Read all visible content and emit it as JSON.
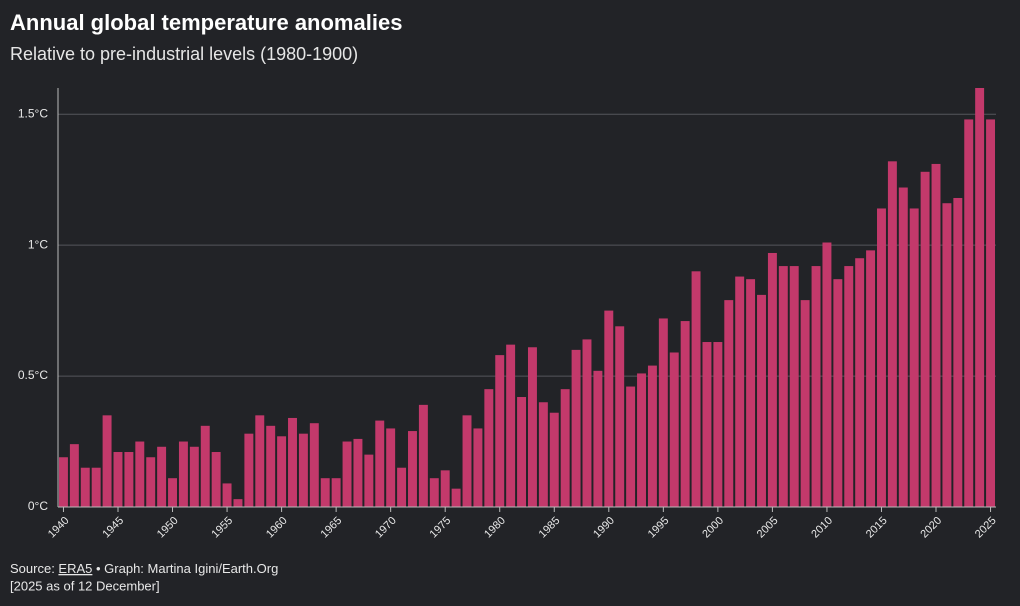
{
  "chart_data": {
    "type": "bar",
    "title": "Annual global temperature anomalies",
    "subtitle": "Relative to pre-industrial levels (1980-1900)",
    "x": [
      1940,
      1941,
      1942,
      1943,
      1944,
      1945,
      1946,
      1947,
      1948,
      1949,
      1950,
      1951,
      1952,
      1953,
      1954,
      1955,
      1956,
      1957,
      1958,
      1959,
      1960,
      1961,
      1962,
      1963,
      1964,
      1965,
      1966,
      1967,
      1968,
      1969,
      1970,
      1971,
      1972,
      1973,
      1974,
      1975,
      1976,
      1977,
      1978,
      1979,
      1980,
      1981,
      1982,
      1983,
      1984,
      1985,
      1986,
      1987,
      1988,
      1989,
      1990,
      1991,
      1992,
      1993,
      1994,
      1995,
      1996,
      1997,
      1998,
      1999,
      2000,
      2001,
      2002,
      2003,
      2004,
      2005,
      2006,
      2007,
      2008,
      2009,
      2010,
      2011,
      2012,
      2013,
      2014,
      2015,
      2016,
      2017,
      2018,
      2019,
      2020,
      2021,
      2022,
      2023,
      2024,
      2025
    ],
    "values": [
      0.19,
      0.24,
      0.15,
      0.15,
      0.35,
      0.21,
      0.21,
      0.25,
      0.19,
      0.23,
      0.11,
      0.25,
      0.23,
      0.31,
      0.21,
      0.09,
      0.03,
      0.28,
      0.35,
      0.31,
      0.27,
      0.34,
      0.28,
      0.32,
      0.11,
      0.11,
      0.25,
      0.26,
      0.2,
      0.33,
      0.3,
      0.15,
      0.29,
      0.39,
      0.11,
      0.14,
      0.07,
      0.35,
      0.3,
      0.45,
      0.58,
      0.62,
      0.42,
      0.61,
      0.4,
      0.36,
      0.45,
      0.6,
      0.64,
      0.52,
      0.75,
      0.69,
      0.46,
      0.51,
      0.54,
      0.72,
      0.59,
      0.71,
      0.9,
      0.63,
      0.63,
      0.79,
      0.88,
      0.87,
      0.81,
      0.97,
      0.92,
      0.92,
      0.79,
      0.92,
      1.01,
      0.87,
      0.92,
      0.95,
      0.98,
      1.14,
      1.32,
      1.22,
      1.14,
      1.28,
      1.31,
      1.16,
      1.18,
      1.48,
      1.6,
      1.48
    ],
    "color": "#c3396b",
    "xlim": [
      1939.5,
      2025.5
    ],
    "xticks": [
      1940,
      1945,
      1950,
      1955,
      1960,
      1965,
      1970,
      1975,
      1980,
      1985,
      1990,
      1995,
      2000,
      2005,
      2010,
      2015,
      2020,
      2025
    ],
    "ylim": [
      0,
      1.6
    ],
    "yticks": [
      {
        "value": 0,
        "label": "0°C"
      },
      {
        "value": 0.5,
        "label": "0.5°C"
      },
      {
        "value": 1,
        "label": "1°C"
      },
      {
        "value": 1.5,
        "label": "1.5°C"
      }
    ],
    "grid": true,
    "source_prefix": "Source: ",
    "source_link": "ERA5",
    "source_suffix": " • Graph: Martina Igini/Earth.Org",
    "note": "[2025 as of 12 December]"
  }
}
